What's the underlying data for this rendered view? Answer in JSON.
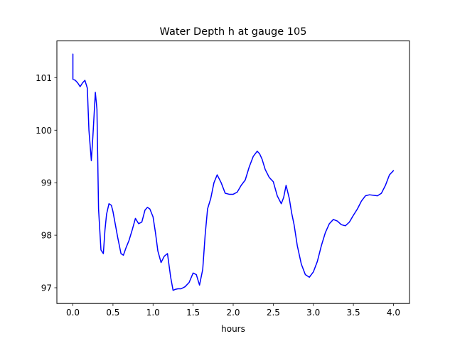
{
  "chart_data": {
    "type": "line",
    "title": "Water Depth h at gauge 105",
    "xlabel": "hours",
    "ylabel": "",
    "xlim": [
      -0.2,
      4.2
    ],
    "ylim": [
      96.7,
      101.7
    ],
    "xticks": [
      0.0,
      0.5,
      1.0,
      1.5,
      2.0,
      2.5,
      3.0,
      3.5,
      4.0
    ],
    "xtick_labels": [
      "0.0",
      "0.5",
      "1.0",
      "1.5",
      "2.0",
      "2.5",
      "3.0",
      "3.5",
      "4.0"
    ],
    "yticks": [
      97,
      98,
      99,
      100,
      101
    ],
    "ytick_labels": [
      "97",
      "98",
      "99",
      "100",
      "101"
    ],
    "grid": false,
    "legend": "none",
    "series": [
      {
        "color": "#0000ff",
        "x": [
          0.0,
          0.0,
          0.03,
          0.06,
          0.09,
          0.12,
          0.15,
          0.18,
          0.2,
          0.23,
          0.25,
          0.28,
          0.3,
          0.32,
          0.35,
          0.38,
          0.4,
          0.42,
          0.45,
          0.48,
          0.5,
          0.53,
          0.56,
          0.6,
          0.63,
          0.66,
          0.7,
          0.74,
          0.78,
          0.82,
          0.86,
          0.9,
          0.93,
          0.96,
          1.0,
          1.03,
          1.06,
          1.1,
          1.14,
          1.18,
          1.22,
          1.25,
          1.28,
          1.31,
          1.35,
          1.4,
          1.45,
          1.5,
          1.54,
          1.58,
          1.62,
          1.65,
          1.68,
          1.72,
          1.76,
          1.8,
          1.85,
          1.9,
          1.95,
          2.0,
          2.05,
          2.1,
          2.15,
          2.2,
          2.25,
          2.3,
          2.33,
          2.36,
          2.4,
          2.45,
          2.5,
          2.55,
          2.6,
          2.63,
          2.66,
          2.7,
          2.73,
          2.76,
          2.8,
          2.85,
          2.9,
          2.95,
          3.0,
          3.05,
          3.1,
          3.15,
          3.2,
          3.25,
          3.3,
          3.35,
          3.4,
          3.45,
          3.5,
          3.55,
          3.6,
          3.65,
          3.7,
          3.75,
          3.8,
          3.85,
          3.9,
          3.95,
          4.0
        ],
        "y": [
          101.45,
          100.97,
          100.95,
          100.9,
          100.83,
          100.9,
          100.95,
          100.8,
          100.0,
          99.42,
          99.9,
          100.72,
          100.4,
          98.5,
          97.72,
          97.65,
          98.1,
          98.4,
          98.6,
          98.57,
          98.45,
          98.2,
          97.95,
          97.65,
          97.62,
          97.75,
          97.9,
          98.1,
          98.32,
          98.22,
          98.25,
          98.48,
          98.53,
          98.5,
          98.35,
          98.05,
          97.7,
          97.48,
          97.6,
          97.65,
          97.2,
          96.95,
          96.97,
          96.98,
          96.98,
          97.02,
          97.1,
          97.28,
          97.25,
          97.05,
          97.35,
          98.0,
          98.5,
          98.7,
          99.0,
          99.15,
          99.0,
          98.8,
          98.78,
          98.78,
          98.82,
          98.95,
          99.05,
          99.3,
          99.5,
          99.6,
          99.55,
          99.45,
          99.25,
          99.1,
          99.02,
          98.75,
          98.6,
          98.72,
          98.95,
          98.7,
          98.42,
          98.2,
          97.8,
          97.45,
          97.25,
          97.2,
          97.3,
          97.5,
          97.8,
          98.05,
          98.22,
          98.3,
          98.27,
          98.2,
          98.18,
          98.25,
          98.38,
          98.5,
          98.65,
          98.75,
          98.77,
          98.76,
          98.75,
          98.8,
          98.95,
          99.15,
          99.23
        ]
      }
    ]
  }
}
